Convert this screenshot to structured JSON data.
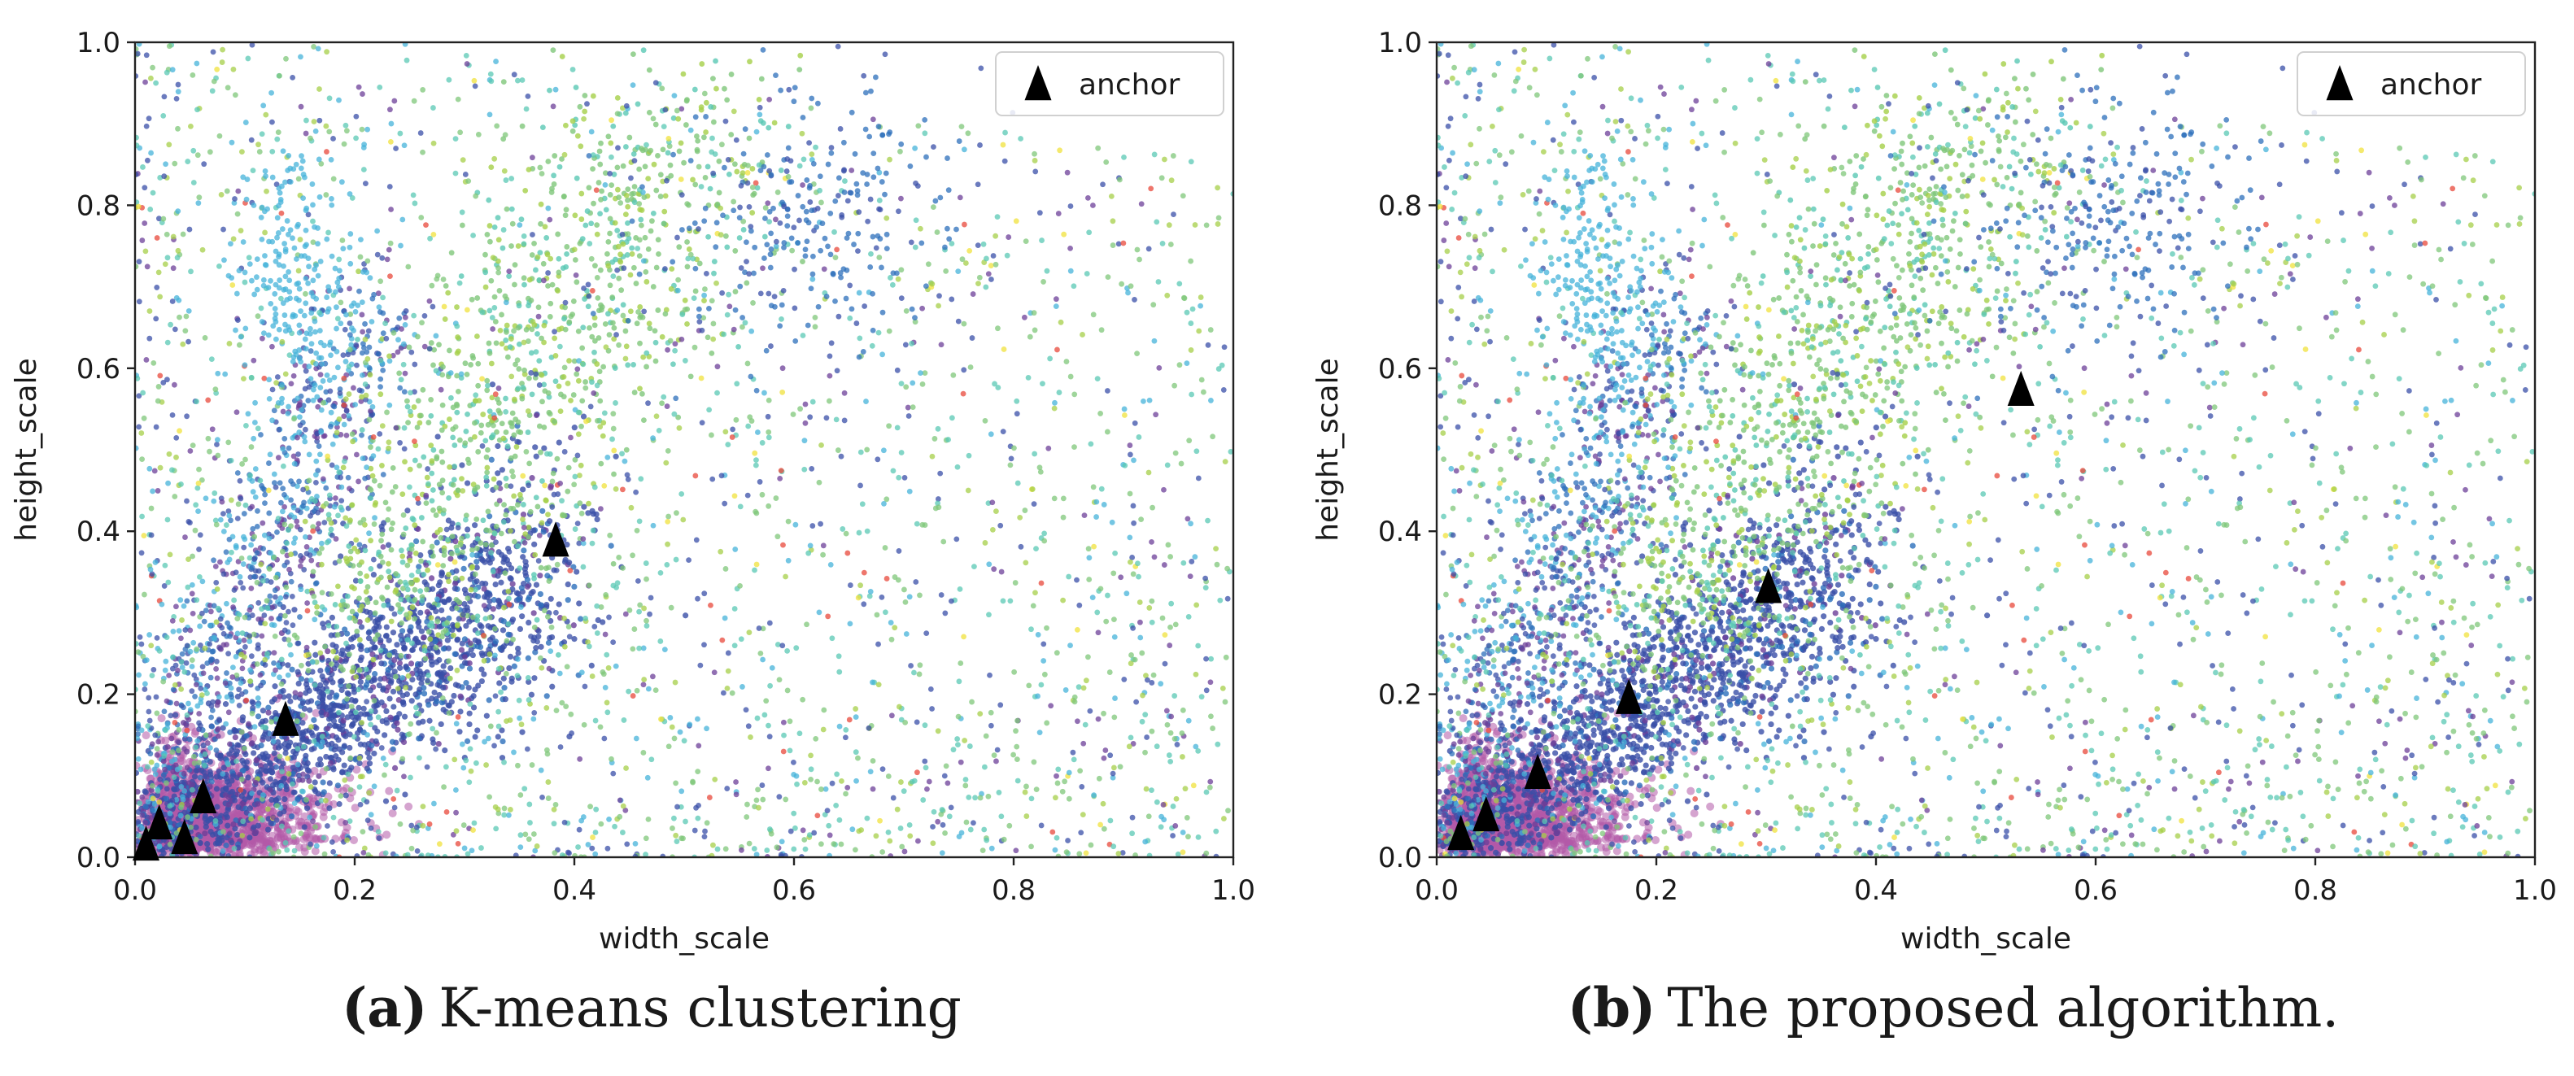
{
  "figure": {
    "background": "#ffffff",
    "point_palette": [
      "#3a4fa8",
      "#2c6fbb",
      "#46b3d9",
      "#5ac8b4",
      "#7fc77a",
      "#a5cf48",
      "#f0e23c",
      "#e8483b",
      "#6c3f98",
      "#b55aa8"
    ],
    "core_color": "#b35aa8"
  },
  "chart_data": [
    {
      "id": "panel-a",
      "type": "scatter",
      "caption_letter": "(a)",
      "caption_text": "K-means clustering",
      "xlabel": "width_scale",
      "ylabel": "height_scale",
      "xlim": [
        0.0,
        1.0
      ],
      "ylim": [
        0.0,
        1.0
      ],
      "xticks": [
        0.0,
        0.2,
        0.4,
        0.6,
        0.8,
        1.0
      ],
      "yticks": [
        0.0,
        0.2,
        0.4,
        0.6,
        0.8,
        1.0
      ],
      "xtick_labels": [
        "0.0",
        "0.2",
        "0.4",
        "0.6",
        "0.8",
        "1.0"
      ],
      "ytick_labels": [
        "0.0",
        "0.2",
        "0.4",
        "0.6",
        "0.8",
        "1.0"
      ],
      "legend": {
        "label": "anchor",
        "position": "top-right"
      },
      "anchors": {
        "name": "anchor",
        "x": [
          0.01,
          0.022,
          0.045,
          0.062,
          0.137,
          0.383
        ],
        "y": [
          0.012,
          0.038,
          0.02,
          0.07,
          0.165,
          0.385
        ]
      }
    },
    {
      "id": "panel-b",
      "type": "scatter",
      "caption_letter": "(b)",
      "caption_text": "The proposed algorithm.",
      "xlabel": "width_scale",
      "ylabel": "height_scale",
      "xlim": [
        0.0,
        1.0
      ],
      "ylim": [
        0.0,
        1.0
      ],
      "xticks": [
        0.0,
        0.2,
        0.4,
        0.6,
        0.8,
        1.0
      ],
      "yticks": [
        0.0,
        0.2,
        0.4,
        0.6,
        0.8,
        1.0
      ],
      "xtick_labels": [
        "0.0",
        "0.2",
        "0.4",
        "0.6",
        "0.8",
        "1.0"
      ],
      "ytick_labels": [
        "0.0",
        "0.2",
        "0.4",
        "0.6",
        "0.8",
        "1.0"
      ],
      "legend": {
        "label": "anchor",
        "position": "top-right"
      },
      "anchors": {
        "name": "anchor",
        "x": [
          0.022,
          0.045,
          0.092,
          0.175,
          0.302,
          0.532
        ],
        "y": [
          0.025,
          0.048,
          0.1,
          0.192,
          0.328,
          0.57
        ]
      }
    }
  ]
}
